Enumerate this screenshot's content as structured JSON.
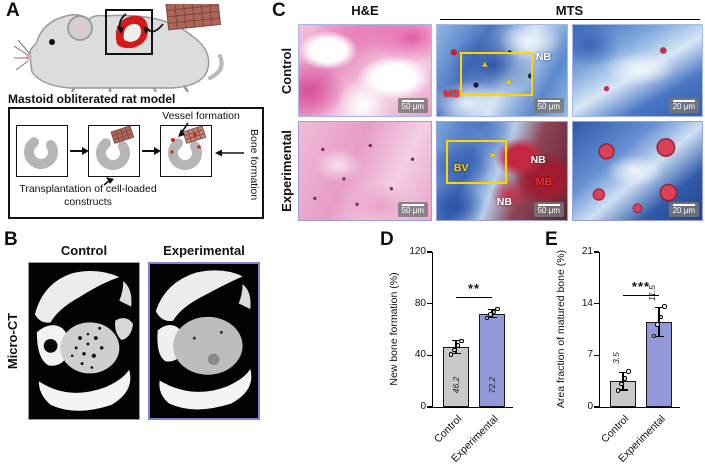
{
  "figure": {
    "panel_a": {
      "label": "A",
      "caption": "Mastoid obliterated rat model",
      "vessel_formation": "Vessel formation",
      "bone_formation": "Bone formation",
      "transplantation": "Transplantation of cell-loaded constructs"
    },
    "panel_b": {
      "label": "B",
      "row_label": "Micro-CT",
      "col_control": "Control",
      "col_experimental": "Experimental"
    },
    "panel_c": {
      "label": "C",
      "header_he": "H&E",
      "header_mts": "MTS",
      "row_control": "Control",
      "row_experimental": "Experimental",
      "ann": {
        "nb": "NB",
        "mb": "MB",
        "bv": "BV"
      },
      "scale_50": "50 μm",
      "scale_20": "20 μm"
    },
    "panel_d": {
      "label": "D"
    },
    "panel_e": {
      "label": "E"
    }
  },
  "colors": {
    "control_bar": "#c9c9c9",
    "experimental_bar": "#9399d8",
    "experimental_border": "#8084d4",
    "annotation_yellow": "#ffd400",
    "annotation_red": "#ff2a2a"
  },
  "chart_data": [
    {
      "type": "bar",
      "panel": "D",
      "categories": [
        "Control",
        "Experimental"
      ],
      "values": [
        46.2,
        72.2
      ],
      "errors": [
        5,
        3
      ],
      "points": [
        [
          40.5,
          44,
          47.5,
          51
        ],
        [
          69,
          71.5,
          73.5,
          76
        ]
      ],
      "value_labels": [
        "46.2",
        "72.2"
      ],
      "ylabel": "New bone formation (%)",
      "xlabel": "",
      "ylim": [
        0,
        120
      ],
      "yticks": [
        0,
        40,
        80,
        120
      ],
      "significance": "**",
      "bar_colors": [
        "#c9c9c9",
        "#9399d8"
      ],
      "value_label_pos": "bottom",
      "grid": false,
      "legend": "none"
    },
    {
      "type": "bar",
      "panel": "E",
      "categories": [
        "Control",
        "Experimental"
      ],
      "values": [
        3.5,
        11.5
      ],
      "errors": [
        1.2,
        2
      ],
      "points": [
        [
          2.2,
          3.1,
          3.9,
          4.8
        ],
        [
          9.6,
          11.2,
          12.2,
          13.6
        ]
      ],
      "value_labels": [
        "3.5",
        "11.5"
      ],
      "ylabel": "Area fraction of matured bone (%)",
      "xlabel": "",
      "ylim": [
        0,
        21
      ],
      "yticks": [
        0,
        7,
        14,
        21
      ],
      "significance": "***",
      "bar_colors": [
        "#c9c9c9",
        "#9399d8"
      ],
      "value_label_pos": "top",
      "grid": false,
      "legend": "none"
    }
  ]
}
